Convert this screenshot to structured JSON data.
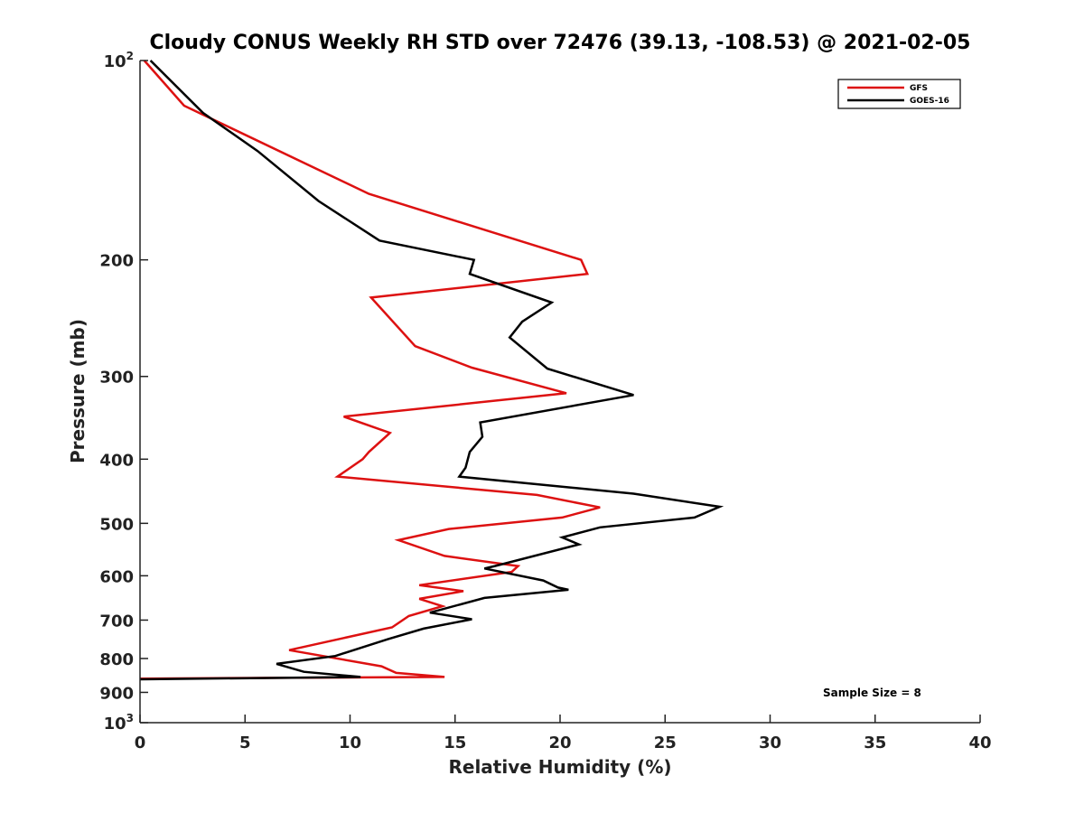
{
  "chart_data": {
    "type": "line",
    "title": "Cloudy CONUS Weekly RH STD over 72476 (39.13, -108.53) @ 2021-02-05",
    "xlabel": "Relative Humidity (%)",
    "ylabel": "Pressure (mb)",
    "xlim": [
      0,
      40
    ],
    "ylim": [
      1000,
      100
    ],
    "y_scale": "log",
    "y_reversed": true,
    "xticks": [
      "0",
      "5",
      "10",
      "15",
      "20",
      "25",
      "30",
      "35",
      "40"
    ],
    "yticks": [
      {
        "value": 100,
        "base": "10",
        "exp": "2"
      },
      {
        "value": 200,
        "base": "200",
        "exp": ""
      },
      {
        "value": 300,
        "base": "300",
        "exp": ""
      },
      {
        "value": 400,
        "base": "400",
        "exp": ""
      },
      {
        "value": 500,
        "base": "500",
        "exp": ""
      },
      {
        "value": 600,
        "base": "600",
        "exp": ""
      },
      {
        "value": 700,
        "base": "700",
        "exp": ""
      },
      {
        "value": 800,
        "base": "800",
        "exp": ""
      },
      {
        "value": 900,
        "base": "900",
        "exp": ""
      },
      {
        "value": 1000,
        "base": "10",
        "exp": "3"
      }
    ],
    "legend_position": "top-right",
    "annotation": "Sample Size = 8",
    "series": [
      {
        "name": "GFS",
        "color": "#dd1111",
        "points": [
          [
            0.2,
            100
          ],
          [
            2.1,
            117
          ],
          [
            10.9,
            159
          ],
          [
            21.0,
            200
          ],
          [
            21.3,
            210
          ],
          [
            11.0,
            228
          ],
          [
            13.1,
            270
          ],
          [
            15.8,
            291
          ],
          [
            20.3,
            318
          ],
          [
            9.7,
            345
          ],
          [
            11.9,
            365
          ],
          [
            10.9,
            390
          ],
          [
            10.6,
            400
          ],
          [
            9.4,
            425
          ],
          [
            18.9,
            453
          ],
          [
            21.9,
            473
          ],
          [
            20.1,
            490
          ],
          [
            14.7,
            510
          ],
          [
            12.3,
            530
          ],
          [
            14.5,
            560
          ],
          [
            18.0,
            580
          ],
          [
            17.7,
            592
          ],
          [
            13.3,
            620
          ],
          [
            15.4,
            633
          ],
          [
            13.3,
            650
          ],
          [
            14.4,
            667
          ],
          [
            12.8,
            690
          ],
          [
            12.0,
            718
          ],
          [
            9.7,
            745
          ],
          [
            7.1,
            777
          ],
          [
            11.5,
            822
          ],
          [
            12.2,
            841
          ],
          [
            14.5,
            853
          ],
          [
            0,
            858
          ]
        ]
      },
      {
        "name": "GOES-16",
        "color": "#000000",
        "points": [
          [
            0.5,
            100
          ],
          [
            3.0,
            120
          ],
          [
            5.6,
            137
          ],
          [
            8.5,
            163
          ],
          [
            11.4,
            187
          ],
          [
            15.9,
            200
          ],
          [
            15.7,
            210
          ],
          [
            19.6,
            232
          ],
          [
            18.2,
            248
          ],
          [
            17.6,
            262
          ],
          [
            19.4,
            292
          ],
          [
            23.5,
            320
          ],
          [
            16.2,
            352
          ],
          [
            16.3,
            370
          ],
          [
            15.7,
            390
          ],
          [
            15.5,
            412
          ],
          [
            15.2,
            425
          ],
          [
            23.5,
            451
          ],
          [
            27.6,
            472
          ],
          [
            26.4,
            490
          ],
          [
            21.9,
            507
          ],
          [
            20.1,
            525
          ],
          [
            20.9,
            538
          ],
          [
            16.9,
            580
          ],
          [
            16.4,
            585
          ],
          [
            19.2,
            610
          ],
          [
            19.9,
            625
          ],
          [
            20.4,
            630
          ],
          [
            16.4,
            648
          ],
          [
            13.8,
            682
          ],
          [
            15.8,
            698
          ],
          [
            13.5,
            721
          ],
          [
            11.8,
            748
          ],
          [
            9.3,
            793
          ],
          [
            6.5,
            815
          ],
          [
            7.8,
            838
          ],
          [
            10.5,
            853
          ],
          [
            0,
            860
          ]
        ]
      }
    ]
  }
}
